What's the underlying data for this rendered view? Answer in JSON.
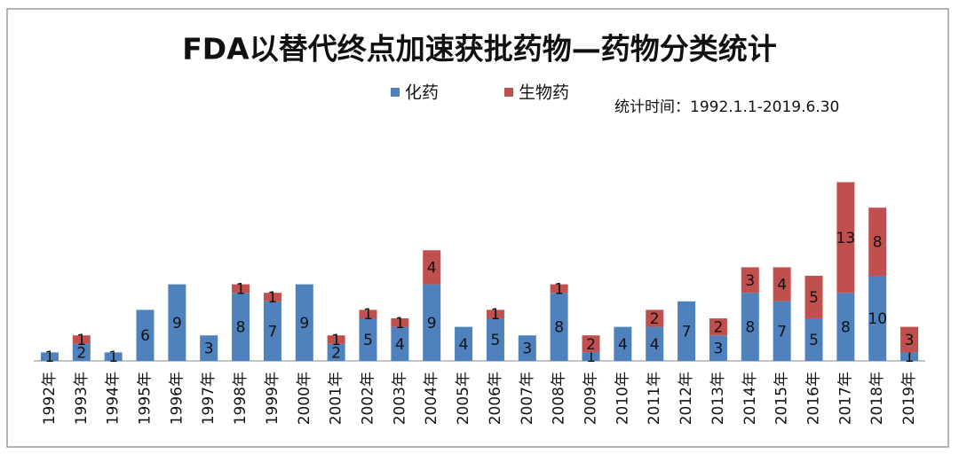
{
  "chart_data": {
    "type": "stacked-bar",
    "title": "FDA以替代终点加速获批药物—药物分类统计",
    "annotation": "统计时间：1992.1.1-2019.6.30",
    "categories": [
      "1992年",
      "1993年",
      "1994年",
      "1995年",
      "1996年",
      "1997年",
      "1998年",
      "1999年",
      "2000年",
      "2001年",
      "2002年",
      "2003年",
      "2004年",
      "2005年",
      "2006年",
      "2007年",
      "2008年",
      "2009年",
      "2010年",
      "2011年",
      "2012年",
      "2013年",
      "2014年",
      "2015年",
      "2016年",
      "2017年",
      "2018年",
      "2019年"
    ],
    "series": [
      {
        "name": "化药",
        "color": "#4f81bd",
        "values": [
          1,
          2,
          1,
          6,
          9,
          3,
          8,
          7,
          9,
          2,
          5,
          4,
          9,
          4,
          5,
          3,
          8,
          1,
          4,
          4,
          7,
          3,
          8,
          7,
          5,
          8,
          10,
          1
        ]
      },
      {
        "name": "生物药",
        "color": "#c0504d",
        "values": [
          null,
          1,
          null,
          null,
          null,
          null,
          1,
          1,
          null,
          1,
          1,
          1,
          4,
          null,
          1,
          null,
          1,
          2,
          null,
          2,
          null,
          2,
          3,
          4,
          5,
          13,
          8,
          3
        ]
      }
    ]
  }
}
